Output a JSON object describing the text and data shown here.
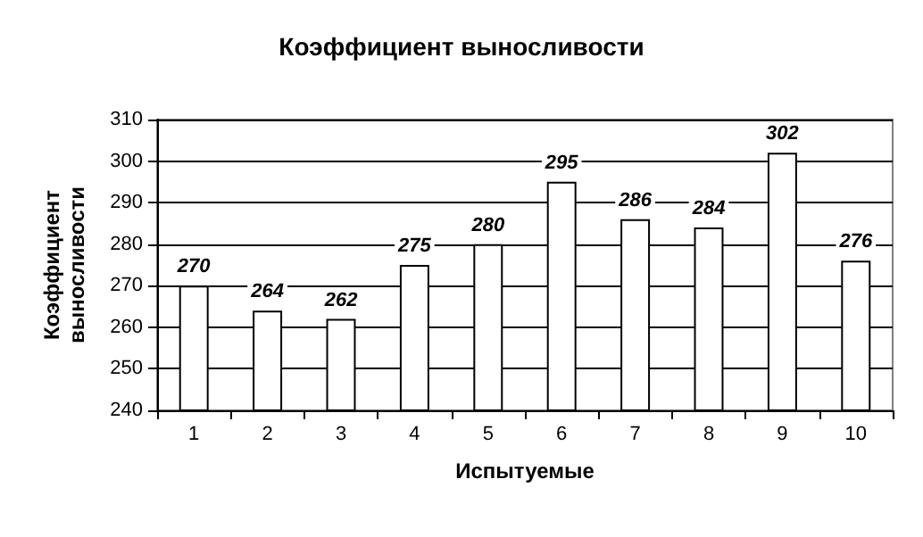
{
  "chart_data": {
    "type": "bar",
    "title": "Коэффициент выносливости",
    "xlabel": "Испытуемые",
    "ylabel": "Коэффициент выносливости",
    "categories": [
      "1",
      "2",
      "3",
      "4",
      "5",
      "6",
      "7",
      "8",
      "9",
      "10"
    ],
    "values": [
      270,
      264,
      262,
      275,
      280,
      295,
      286,
      284,
      302,
      276
    ],
    "color": "#ffffff",
    "ylim": [
      240,
      310
    ],
    "yticks": [
      240,
      250,
      260,
      270,
      280,
      290,
      300,
      310
    ],
    "grid": "y",
    "data_labels": true
  }
}
